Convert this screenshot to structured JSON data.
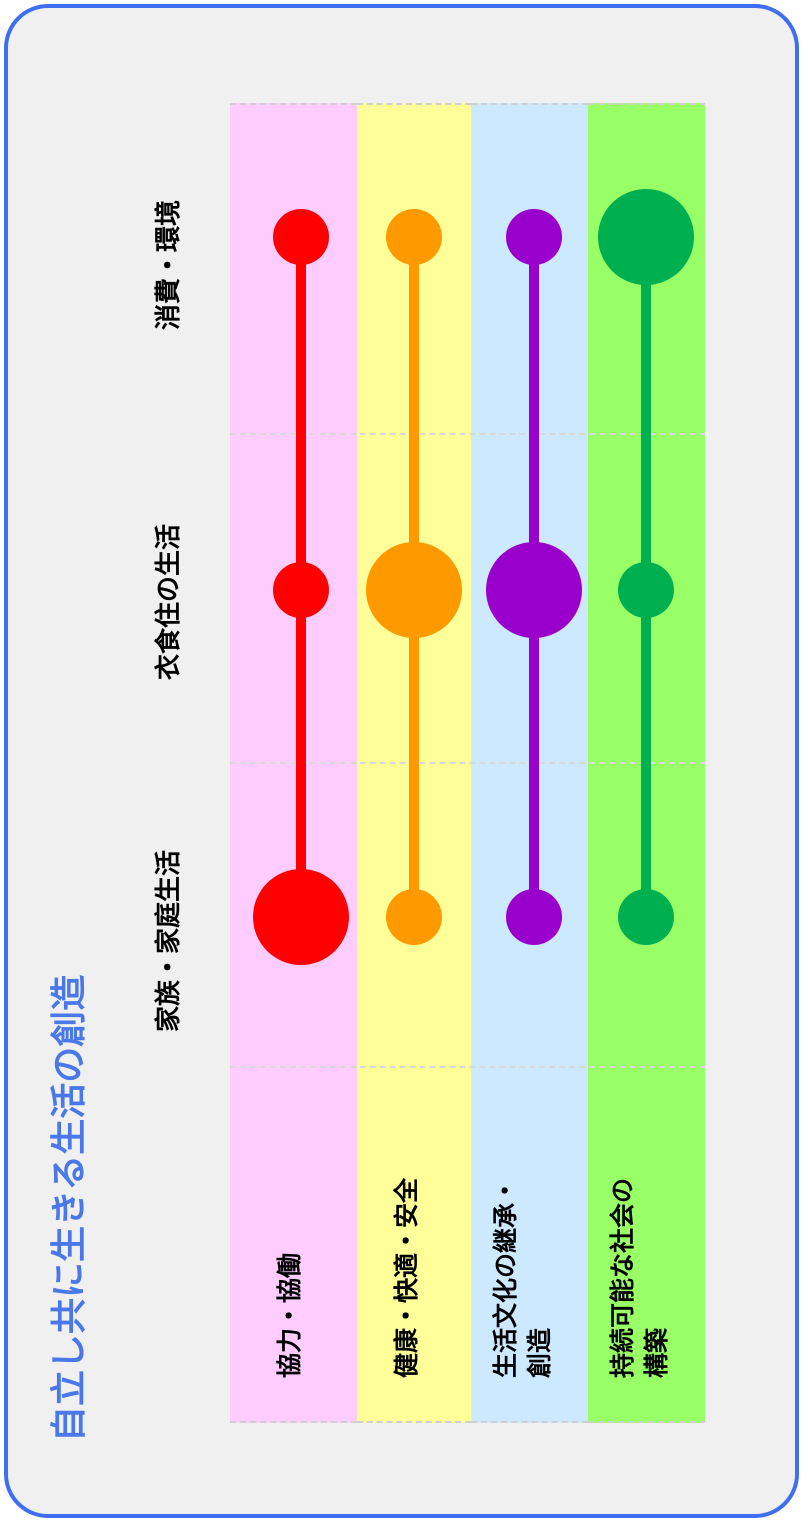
{
  "title": "自立し共に生きる生活の創造",
  "columns": [
    "家族・家庭生活",
    "衣食住の生活",
    "消費・環境"
  ],
  "rows": [
    {
      "label_lines": [
        "協力・協働"
      ],
      "color": "#ff0000",
      "band": "#ffccff",
      "sizes": [
        "large",
        "small",
        "small"
      ]
    },
    {
      "label_lines": [
        "健康・快適・安全"
      ],
      "color": "#ff9900",
      "band": "#ffff99",
      "sizes": [
        "small",
        "large",
        "small"
      ]
    },
    {
      "label_lines": [
        "生活文化の継承・",
        "創造"
      ],
      "color": "#9900cc",
      "band": "#cce9ff",
      "sizes": [
        "small",
        "large",
        "small"
      ]
    },
    {
      "label_lines": [
        "持続可能な社会の",
        "構築"
      ],
      "color": "#00b050",
      "band": "#99ff66",
      "sizes": [
        "small",
        "small",
        "large"
      ]
    }
  ],
  "colors": {
    "frame": "#3d6ff0",
    "title": "#4a78e8",
    "background": "#f0f0f0"
  }
}
